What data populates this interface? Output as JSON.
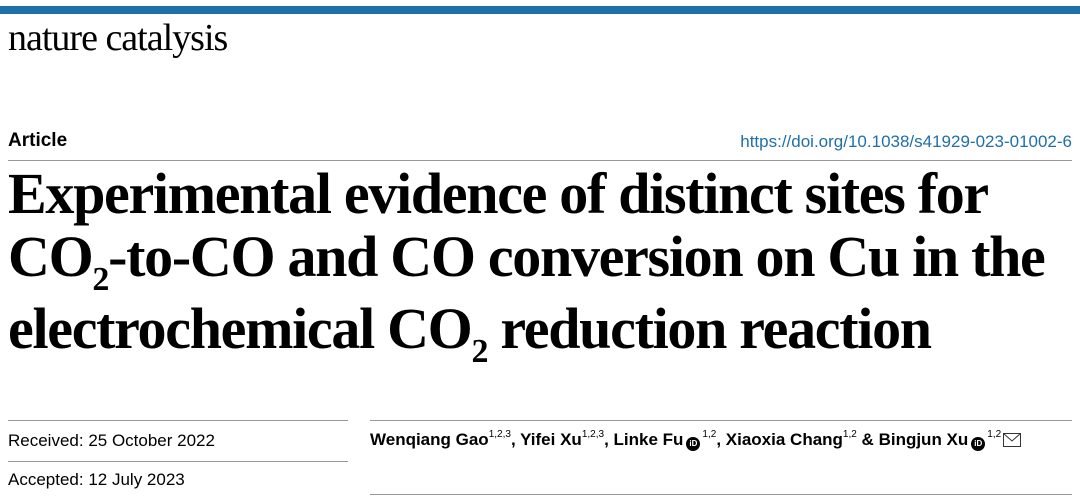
{
  "header": {
    "journal_name": "nature catalysis",
    "accent_color": "#1f6fa8"
  },
  "article": {
    "type_label": "Article",
    "doi": "https://doi.org/10.1038/s41929-023-01002-6",
    "title": {
      "line1": "Experimental evidence of distinct sites for",
      "line2_a": "CO",
      "line2_sub": "2",
      "line2_b": "-to-CO and CO conversion on Cu in the",
      "line3_a": "electrochemical CO",
      "line3_sub": "2",
      "line3_b": " reduction reaction"
    },
    "received": "Received: 25 October 2022",
    "accepted": "Accepted: 12 July 2023",
    "authors": [
      {
        "name": "Wenqiang Gao",
        "affil": "1,2,3",
        "sep": ", "
      },
      {
        "name": "Yifei Xu",
        "affil": "1,2,3",
        "sep": ", "
      },
      {
        "name": "Linke Fu",
        "affil": "1,2",
        "sep": ", "
      },
      {
        "name": "Xiaoxia Chang",
        "affil": "1,2",
        "sep": " & "
      },
      {
        "name": "Bingjun Xu",
        "affil": "1,2",
        "sep": ""
      }
    ],
    "orcid_icon": "orcid-icon",
    "email_icon": "envelope-icon"
  }
}
